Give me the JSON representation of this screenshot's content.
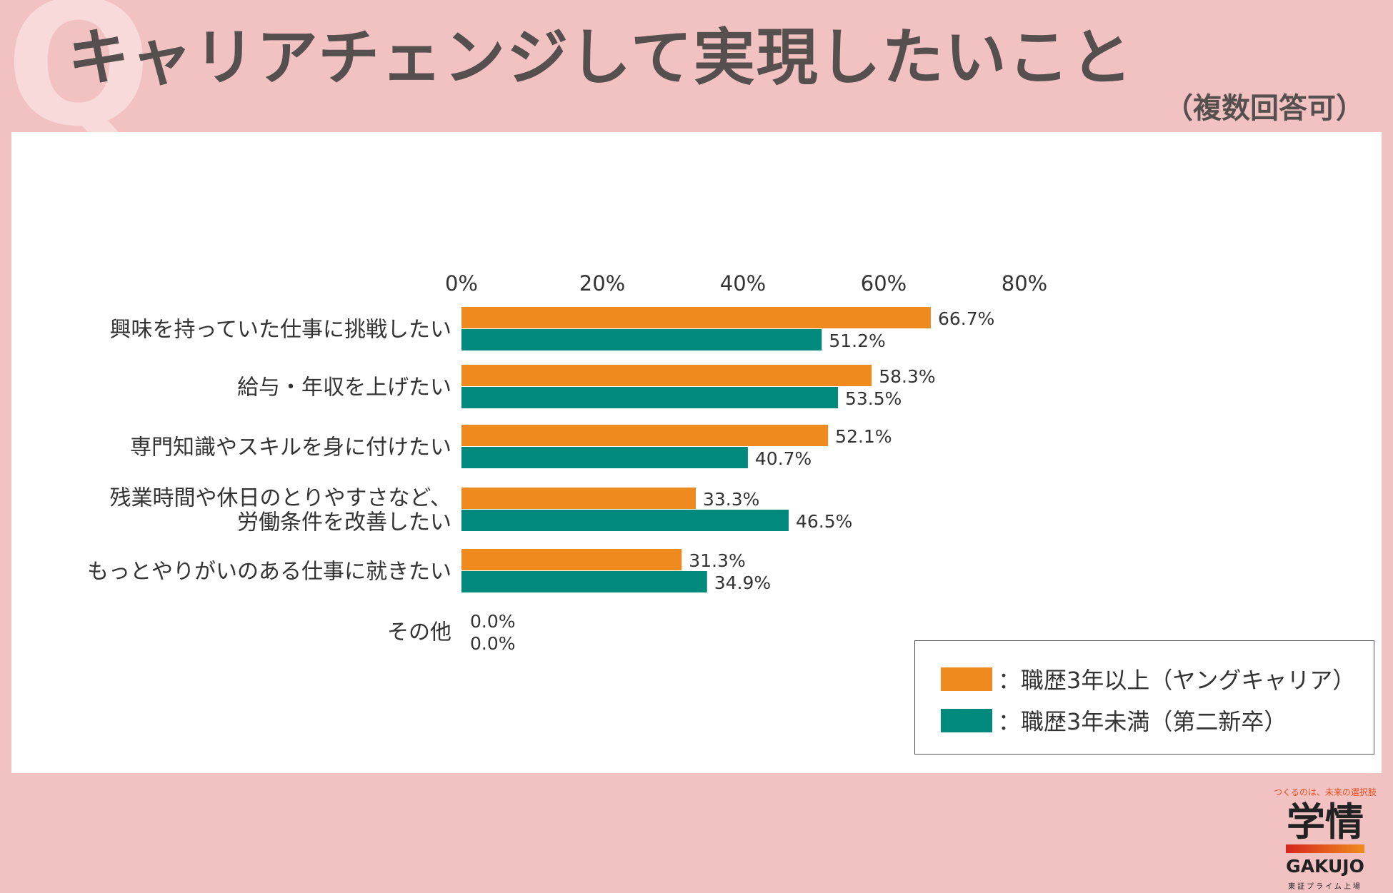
{
  "header": {
    "title": "キャリアチェンジして実現したいこと",
    "subtitle": "（複数回答可）",
    "q_mark": "Q"
  },
  "colors": {
    "background": "#f2c2c3",
    "series_orange": "#ef8a1e",
    "series_teal": "#008a7d",
    "title_text": "#55504e"
  },
  "chart_data": {
    "type": "bar",
    "orientation": "horizontal",
    "categories": [
      "興味を持っていた仕事に挑戦したい",
      "給与・年収を上げたい",
      "専門知識やスキルを身に付けたい",
      "残業時間や休日のとりやすさなど、\n労働条件を改善したい",
      "もっとやりがいのある仕事に就きたい",
      "その他"
    ],
    "series": [
      {
        "name": "：職歴3年以上（ヤングキャリア）",
        "color": "#ef8a1e",
        "values": [
          66.7,
          58.3,
          52.1,
          33.3,
          31.3,
          0.0
        ]
      },
      {
        "name": "：職歴3年未満（第二新卒）",
        "color": "#008a7d",
        "values": [
          51.2,
          53.5,
          40.7,
          46.5,
          34.9,
          0.0
        ]
      }
    ],
    "value_labels": [
      [
        "66.7%",
        "58.3%",
        "52.1%",
        "33.3%",
        "31.3%",
        "0.0%"
      ],
      [
        "51.2%",
        "53.5%",
        "40.7%",
        "46.5%",
        "34.9%",
        "0.0%"
      ]
    ],
    "xlim": [
      0,
      80
    ],
    "xticks": [
      0,
      20,
      40,
      60,
      80
    ],
    "xtick_labels": [
      "0%",
      "20%",
      "40%",
      "60%",
      "80%"
    ],
    "xaxis_position": "top",
    "grid": false,
    "legend_position": "right"
  },
  "logo": {
    "tagline": "つくるのは、未来の選択肢",
    "kanji": "学情",
    "latin": "GAKUJO",
    "sub": "東証プライム上場"
  }
}
